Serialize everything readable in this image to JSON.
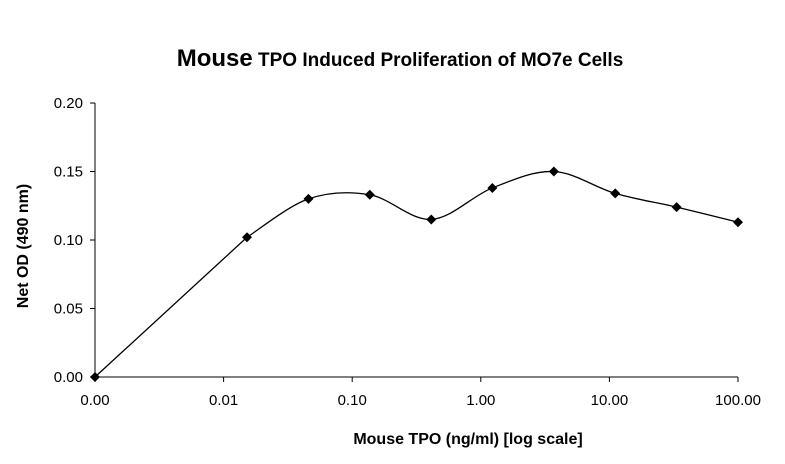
{
  "chart_data": {
    "type": "line",
    "title_lead": "Mouse",
    "title_rest": " TPO Induced Proliferation of MO7e Cells",
    "xlabel": "Mouse TPO (ng/ml) [log scale]",
    "ylabel": "Net OD (490 nm)",
    "x_scale": "log",
    "x_tick_labels": [
      "0.00",
      "0.01",
      "0.10",
      "1.00",
      "10.00",
      "100.00"
    ],
    "y_tick_labels": [
      "0.00",
      "0.05",
      "0.10",
      "0.15",
      "0.20"
    ],
    "ylim": [
      0,
      0.2
    ],
    "grid": false,
    "legend": "none",
    "marker": "diamond",
    "line_color": "#000000",
    "series": [
      {
        "x": [
          0,
          0.0152,
          0.0457,
          0.137,
          0.412,
          1.23,
          3.7,
          11.1,
          33.3,
          100
        ],
        "values": [
          0.0,
          0.102,
          0.13,
          0.133,
          0.115,
          0.138,
          0.15,
          0.134,
          0.124,
          0.113
        ]
      }
    ]
  }
}
